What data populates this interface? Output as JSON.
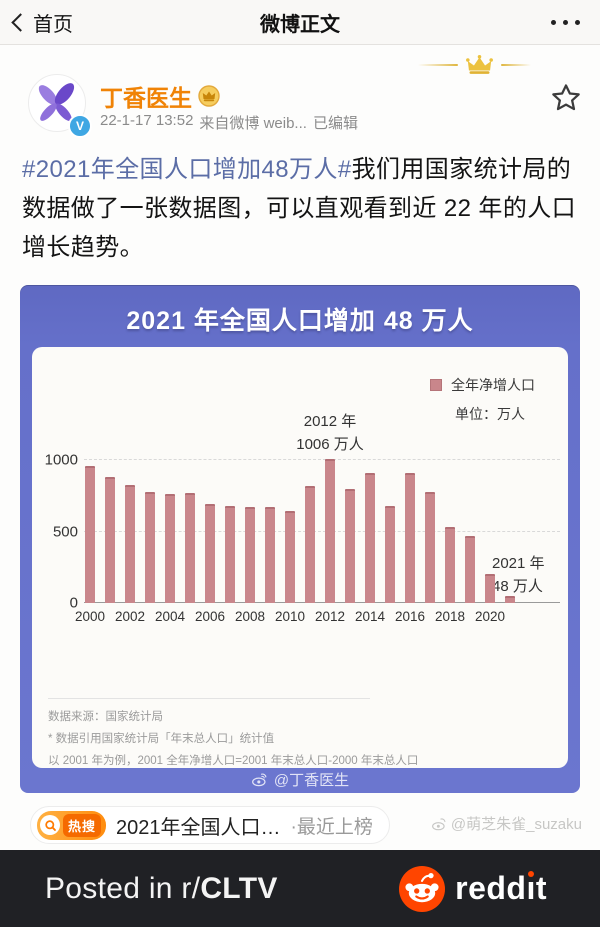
{
  "nav": {
    "back_label": "首页",
    "title": "微博正文"
  },
  "post": {
    "author": "丁香医生",
    "verified_badge": "V",
    "timestamp": "22-1-17 13:52",
    "source": "来自微博 weib...",
    "edited": "已编辑",
    "body_hashtag": "#2021年全国人口增加48万人#",
    "body_text": "我们用国家统计局的数据做了一张数据图，可以直观看到近 22 年的人口增长趋势。"
  },
  "chart_card": {
    "title": "2021 年全国人口增加 48 万人",
    "legend_label": "全年净增人口",
    "unit_label": "单位：万人",
    "anno2012_l1": "2012 年",
    "anno2012_l2": "1006 万人",
    "anno2021_l1": "2021 年",
    "anno2021_l2": "48 万人",
    "source_line": "数据来源：国家统计局",
    "note1": "* 数据引用国家统计局「年末总人口」统计值",
    "note2": "以 2001 年为例，2001 全年净增人口=2001 年末总人口-2000 年末总人口",
    "watermark": "@丁香医生"
  },
  "chart_data": {
    "type": "bar",
    "title": "2021 年全国人口增加 48 万人",
    "categories": [
      2000,
      2001,
      2002,
      2003,
      2004,
      2005,
      2006,
      2007,
      2008,
      2009,
      2010,
      2011,
      2012,
      2013,
      2014,
      2015,
      2016,
      2017,
      2018,
      2019,
      2020,
      2021
    ],
    "values": [
      957,
      884,
      826,
      774,
      761,
      768,
      692,
      681,
      673,
      672,
      641,
      817,
      1006,
      796,
      912,
      680,
      906,
      779,
      530,
      467,
      204,
      48
    ],
    "x_tick_labels": [
      "2000",
      "2002",
      "2004",
      "2006",
      "2008",
      "2010",
      "2012",
      "2014",
      "2016",
      "2018",
      "2020"
    ],
    "y_ticks": [
      0,
      500,
      1000
    ],
    "ylim": [
      0,
      1050
    ],
    "unit": "万人",
    "legend": [
      "全年净增人口"
    ],
    "legend_position": "top-right",
    "grid": "dashed-horizontal",
    "bar_color": "#c9868b",
    "annotations": [
      {
        "year": 2012,
        "label": "2012 年 1006 万人"
      },
      {
        "year": 2021,
        "label": "2021 年 48 万人"
      }
    ]
  },
  "hot_search": {
    "badge_label": "热搜",
    "text": "2021年全国人口…",
    "suffix": "·最近上榜"
  },
  "watermark_user": {
    "handle": "@萌芝朱雀_suzaku"
  },
  "footer": {
    "posted_prefix": "Posted in r/",
    "subreddit": "CLTV",
    "brand_pre": "redd",
    "brand_i": "ı",
    "brand_post": "t"
  },
  "colors": {
    "accent_purple": "#6570ca",
    "bar": "#c9868b",
    "username_orange": "#f08306",
    "hashtag_blue": "#5b6da6",
    "reddit_orange": "#ff4500",
    "hot_badge_orange": "#f56a00",
    "crown_gold": "#dfb63e"
  }
}
